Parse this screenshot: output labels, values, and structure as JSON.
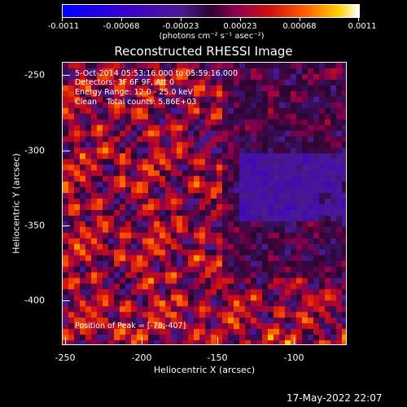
{
  "colorbar": {
    "tick_labels": [
      "-0.0011",
      "-0.00068",
      "-0.00023",
      "0.00023",
      "0.00068",
      "0.0011"
    ],
    "units": "(photons cm⁻² s⁻¹ asec⁻²)"
  },
  "chart_data": {
    "type": "heatmap",
    "title": "Reconstructed RHESSI Image",
    "xlabel": "Heliocentric X (arcsec)",
    "ylabel": "Heliocentric Y (arcsec)",
    "xlim": [
      -250,
      -65
    ],
    "ylim": [
      -432,
      -245
    ],
    "x_ticks": [
      "-250",
      "-200",
      "-150",
      "-100"
    ],
    "y_ticks": [
      "-250",
      "-300",
      "-350",
      "-400"
    ],
    "colorbar_range": [
      -0.0011,
      0.0011
    ],
    "annotations": {
      "time_range": "5-Oct-2014 05:53:16.000 to 05:59:16.000",
      "detectors": "Detectors: 3F 6F 9F, Att 0",
      "energy": "Energy Range: 12.0 - 25.0 keV",
      "clean": "Clean    Total counts: 5.86E+03",
      "peak": "Position of Peak = [-78,-407]"
    }
  },
  "footer": {
    "timestamp": "17-May-2022 22:07"
  }
}
